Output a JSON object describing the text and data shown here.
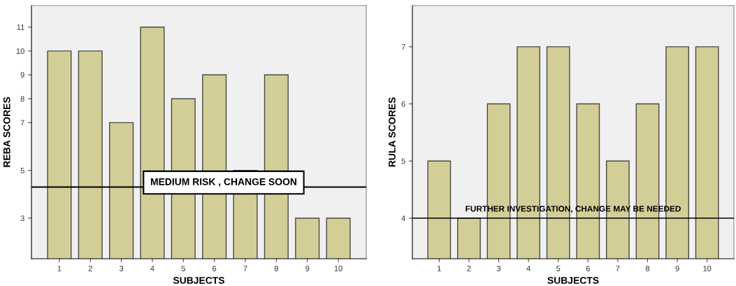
{
  "chart_data": [
    {
      "type": "bar",
      "xlabel": "SUBJECTS",
      "ylabel": "REBA SCORES",
      "categories": [
        "1",
        "2",
        "3",
        "4",
        "5",
        "6",
        "7",
        "8",
        "9",
        "10"
      ],
      "color": "#d3cd98",
      "values": [
        10,
        10,
        7,
        11,
        8,
        9,
        5,
        9,
        3,
        3
      ],
      "ylim": [
        1.3,
        11.9
      ],
      "yticks": [
        3,
        5,
        7,
        8,
        9,
        10,
        11
      ],
      "ref_lines": [
        {
          "axis": "y",
          "value": 4.3,
          "label": "MEDIUM RISK , CHANGE SOON",
          "color": "#000000"
        }
      ],
      "grid": false,
      "legend": false
    },
    {
      "type": "bar",
      "xlabel": "SUBJECTS",
      "ylabel": "RULA SCORES",
      "categories": [
        "1",
        "2",
        "3",
        "4",
        "5",
        "6",
        "7",
        "8",
        "9",
        "10"
      ],
      "color": "#d3cd98",
      "values": [
        5,
        4,
        6,
        7,
        7,
        6,
        5,
        6,
        7,
        7
      ],
      "ylim": [
        3.29,
        7.72
      ],
      "yticks": [
        4,
        5,
        6,
        7
      ],
      "ref_lines": [
        {
          "axis": "y",
          "value": 4,
          "label": "FURTHER INVESTIGATION, CHANGE MAY BE NEEDED",
          "color": "#000000"
        }
      ],
      "grid": false,
      "legend": false
    }
  ]
}
